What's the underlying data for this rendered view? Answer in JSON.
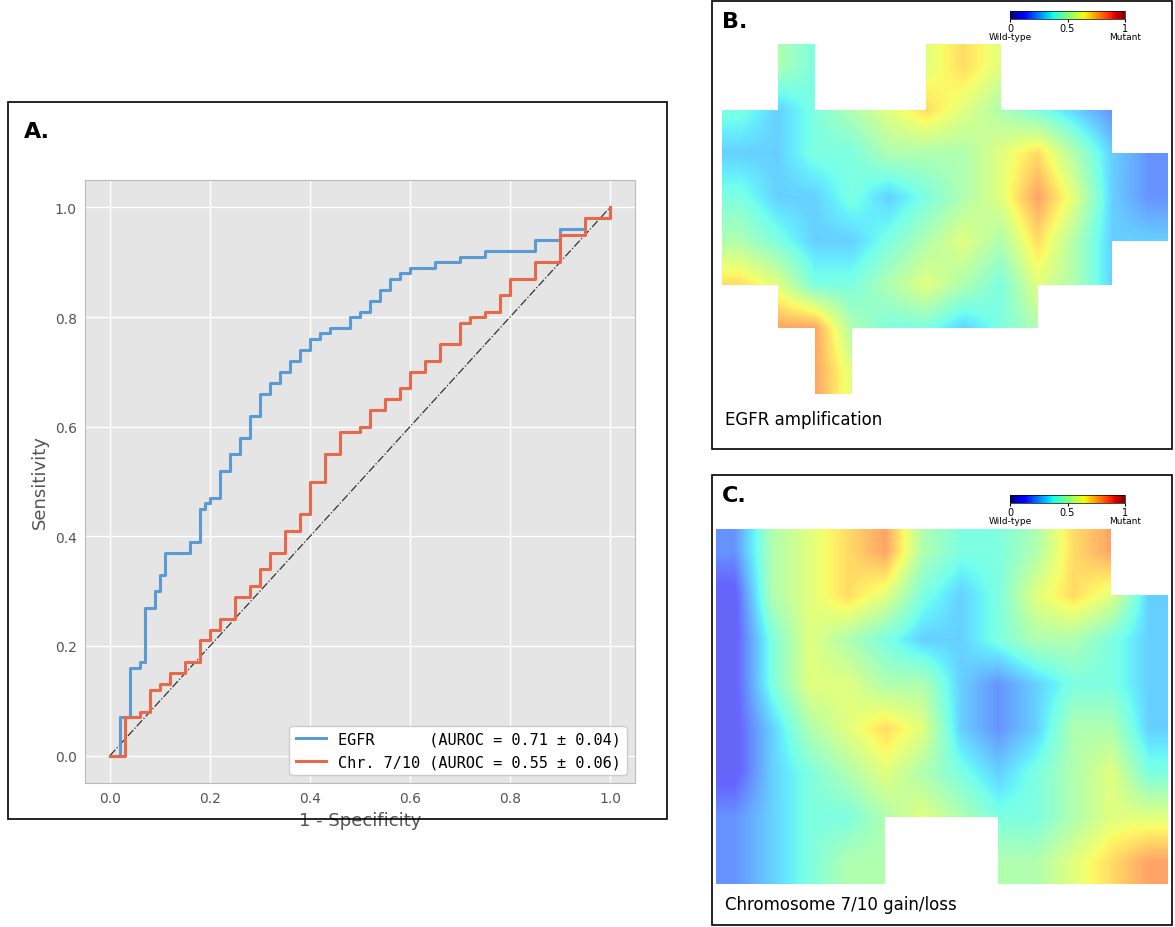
{
  "chart_data": [
    {
      "type": "line",
      "panel_label": "A.",
      "x_label": "1 - Specificity",
      "y_label": "Sensitivity",
      "xlim": [
        -0.05,
        1.05
      ],
      "ylim": [
        -0.05,
        1.05
      ],
      "xticks": [
        {
          "value": 0,
          "label": "0.0"
        },
        {
          "value": 0.2,
          "label": "0.2"
        },
        {
          "value": 0.4,
          "label": "0.4"
        },
        {
          "value": 0.6,
          "label": "0.6"
        },
        {
          "value": 0.8,
          "label": "0.8"
        },
        {
          "value": 1,
          "label": "1.0"
        }
      ],
      "yticks": [
        {
          "value": 0,
          "label": "0.0"
        },
        {
          "value": 0.2,
          "label": "0.2"
        },
        {
          "value": 0.4,
          "label": "0.4"
        },
        {
          "value": 0.6,
          "label": "0.6"
        },
        {
          "value": 0.8,
          "label": "0.8"
        },
        {
          "value": 1,
          "label": "1.0"
        }
      ],
      "grid": true,
      "legend": "lower right",
      "series": [
        {
          "name": "EGFR      (AUROC = 0.71 ± 0.04)",
          "color": "#5a9bd4",
          "x": [
            0,
            0.02,
            0.03,
            0.04,
            0.05,
            0.06,
            0.07,
            0.08,
            0.09,
            0.1,
            0.11,
            0.13,
            0.16,
            0.18,
            0.19,
            0.2,
            0.22,
            0.24,
            0.26,
            0.28,
            0.3,
            0.32,
            0.34,
            0.36,
            0.38,
            0.4,
            0.42,
            0.44,
            0.46,
            0.48,
            0.5,
            0.52,
            0.54,
            0.56,
            0.58,
            0.6,
            0.65,
            0.7,
            0.75,
            0.8,
            0.85,
            0.9,
            0.95,
            1.0
          ],
          "values": [
            0,
            0.07,
            0.07,
            0.16,
            0.16,
            0.17,
            0.27,
            0.27,
            0.3,
            0.33,
            0.37,
            0.37,
            0.39,
            0.45,
            0.46,
            0.47,
            0.52,
            0.55,
            0.58,
            0.62,
            0.66,
            0.68,
            0.7,
            0.72,
            0.74,
            0.76,
            0.77,
            0.78,
            0.78,
            0.8,
            0.81,
            0.83,
            0.85,
            0.87,
            0.88,
            0.89,
            0.9,
            0.91,
            0.92,
            0.92,
            0.94,
            0.96,
            0.98,
            1.0
          ]
        },
        {
          "name": "Chr. 7/10 (AUROC = 0.55 ± 0.06)",
          "color": "#e8694a",
          "x": [
            0,
            0.03,
            0.06,
            0.08,
            0.1,
            0.12,
            0.15,
            0.18,
            0.2,
            0.22,
            0.25,
            0.28,
            0.3,
            0.32,
            0.35,
            0.38,
            0.4,
            0.43,
            0.46,
            0.5,
            0.52,
            0.55,
            0.58,
            0.6,
            0.63,
            0.66,
            0.7,
            0.72,
            0.75,
            0.78,
            0.8,
            0.85,
            0.9,
            0.95,
            1.0
          ],
          "values": [
            0,
            0.07,
            0.08,
            0.12,
            0.13,
            0.15,
            0.17,
            0.21,
            0.23,
            0.25,
            0.29,
            0.31,
            0.34,
            0.37,
            0.41,
            0.44,
            0.5,
            0.55,
            0.59,
            0.6,
            0.63,
            0.65,
            0.67,
            0.7,
            0.72,
            0.75,
            0.79,
            0.8,
            0.81,
            0.84,
            0.87,
            0.9,
            0.95,
            0.98,
            1.0
          ]
        }
      ],
      "reference": {
        "x": [
          0,
          1
        ],
        "values": [
          0,
          1
        ],
        "color": "#333333",
        "line_style": "dashdot"
      }
    },
    {
      "type": "heatmap",
      "panel_label": "B.",
      "caption": "EGFR amplification",
      "colorbar_range": [
        0,
        1
      ],
      "colorbar_ticks": [
        0,
        0.5,
        1
      ],
      "colorbar_low_label": "Wild-type",
      "colorbar_high_label": "Mutant",
      "cells": [
        [
          null,
          0.5,
          0.4,
          null,
          null,
          0.6,
          0.7,
          0.6,
          null,
          null,
          null,
          null
        ],
        [
          0.4,
          0.3,
          0.4,
          0.5,
          0.6,
          0.7,
          0.6,
          0.5,
          0.4,
          0.3,
          0.2,
          null
        ],
        [
          0.3,
          0.3,
          0.4,
          0.4,
          0.5,
          0.5,
          0.5,
          0.6,
          0.7,
          0.5,
          0.3,
          0.2
        ],
        [
          0.4,
          0.3,
          0.3,
          0.4,
          0.3,
          0.4,
          0.5,
          0.6,
          0.8,
          0.6,
          0.3,
          0.2
        ],
        [
          0.5,
          0.4,
          0.3,
          0.3,
          0.4,
          0.5,
          0.6,
          0.5,
          0.7,
          0.5,
          0.3,
          0.3
        ],
        [
          0.7,
          0.6,
          0.4,
          0.4,
          0.5,
          0.6,
          0.5,
          0.4,
          0.6,
          0.5,
          0.3,
          null
        ],
        [
          null,
          0.8,
          0.8,
          0.5,
          0.4,
          0.4,
          0.3,
          0.4,
          0.5,
          null,
          null,
          null
        ],
        [
          null,
          null,
          0.8,
          0.6,
          null,
          null,
          null,
          null,
          null,
          null,
          null,
          null
        ]
      ]
    },
    {
      "type": "heatmap",
      "panel_label": "C.",
      "caption": "Chromosome 7/10 gain/loss",
      "colorbar_range": [
        0,
        1
      ],
      "colorbar_ticks": [
        0,
        0.5,
        1
      ],
      "colorbar_low_label": "Wild-type",
      "colorbar_high_label": "Mutant",
      "cells": [
        [
          0.2,
          0.5,
          0.6,
          0.7,
          0.8,
          0.5,
          0.4,
          0.4,
          0.5,
          0.7,
          0.8,
          null
        ],
        [
          0.1,
          0.5,
          0.6,
          0.7,
          0.6,
          0.4,
          0.3,
          0.4,
          0.6,
          0.7,
          0.6,
          0.3
        ],
        [
          0.1,
          0.4,
          0.6,
          0.5,
          0.4,
          0.3,
          0.3,
          0.4,
          0.5,
          0.5,
          0.4,
          0.3
        ],
        [
          0.1,
          0.4,
          0.6,
          0.6,
          0.5,
          0.5,
          0.3,
          0.2,
          0.3,
          0.4,
          0.4,
          0.3
        ],
        [
          0.1,
          0.3,
          0.5,
          0.6,
          0.7,
          0.6,
          0.3,
          0.2,
          0.3,
          0.5,
          0.5,
          0.3
        ],
        [
          0.1,
          0.3,
          0.4,
          0.5,
          0.6,
          0.5,
          0.4,
          0.3,
          0.4,
          0.5,
          0.6,
          0.4
        ],
        [
          0.2,
          0.3,
          0.4,
          0.4,
          0.5,
          0.6,
          0.5,
          0.4,
          0.4,
          0.5,
          0.6,
          0.6
        ],
        [
          0.2,
          0.3,
          0.4,
          0.5,
          0.5,
          null,
          null,
          0.5,
          0.5,
          0.6,
          0.7,
          0.8
        ]
      ]
    }
  ]
}
